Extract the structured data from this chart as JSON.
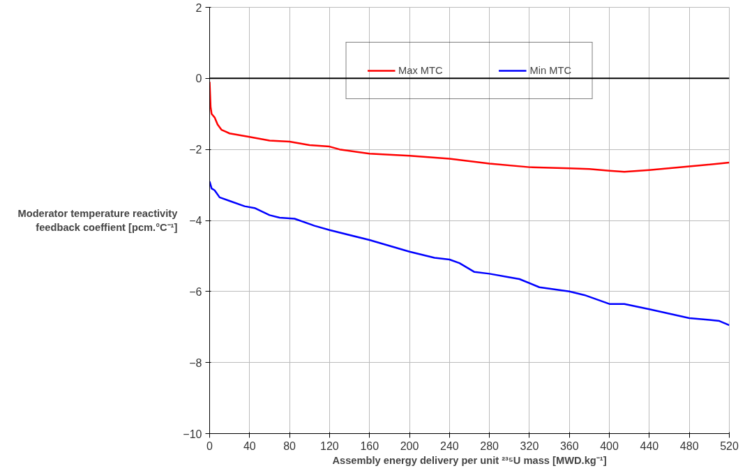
{
  "chart_data": {
    "type": "line",
    "xlabel": "Assembly energy delivery per unit ²³⁵U mass [MWD.kg⁻¹]",
    "ylabel": "Moderator temperature reactivity feedback coeffient [pcm.°C⁻¹]",
    "xlim": [
      0,
      520
    ],
    "xticks": [
      0,
      40,
      80,
      120,
      160,
      200,
      240,
      280,
      320,
      360,
      400,
      440,
      480,
      520
    ],
    "ylim": [
      -10,
      2
    ],
    "yticks": [
      -10,
      -8,
      -6,
      -4,
      -2,
      0,
      2
    ],
    "grid": true,
    "legend": "top",
    "line_style": "solid",
    "marker": "none",
    "ref_lines": [
      {
        "axis": "y",
        "value": 0,
        "color": "#000000"
      }
    ],
    "series": [
      {
        "name": "Max MTC",
        "color": "#ff0000",
        "x": [
          0,
          1,
          2,
          5,
          8,
          12,
          16,
          20,
          40,
          60,
          80,
          100,
          120,
          130,
          160,
          200,
          240,
          280,
          320,
          360,
          380,
          400,
          415,
          440,
          480,
          520
        ],
        "values": [
          -0.1,
          -0.8,
          -1.0,
          -1.1,
          -1.3,
          -1.45,
          -1.5,
          -1.55,
          -1.65,
          -1.75,
          -1.78,
          -1.88,
          -1.92,
          -2.0,
          -2.12,
          -2.18,
          -2.26,
          -2.4,
          -2.5,
          -2.53,
          -2.55,
          -2.6,
          -2.63,
          -2.58,
          -2.48,
          -2.37
        ]
      },
      {
        "name": "Min MTC",
        "color": "#0000ff",
        "x": [
          0,
          2,
          5,
          10,
          20,
          35,
          45,
          60,
          70,
          85,
          105,
          120,
          160,
          200,
          225,
          240,
          250,
          265,
          280,
          300,
          310,
          330,
          360,
          375,
          400,
          415,
          440,
          480,
          500,
          510,
          520
        ],
        "values": [
          -2.9,
          -3.1,
          -3.15,
          -3.35,
          -3.45,
          -3.6,
          -3.65,
          -3.85,
          -3.92,
          -3.95,
          -4.15,
          -4.27,
          -4.55,
          -4.88,
          -5.05,
          -5.1,
          -5.2,
          -5.45,
          -5.5,
          -5.6,
          -5.65,
          -5.88,
          -6.0,
          -6.1,
          -6.35,
          -6.35,
          -6.5,
          -6.75,
          -6.8,
          -6.83,
          -6.95
        ]
      }
    ]
  }
}
